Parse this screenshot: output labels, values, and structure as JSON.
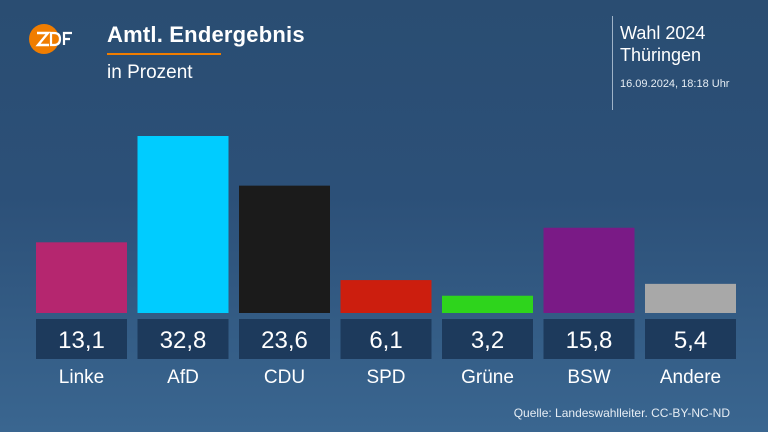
{
  "header": {
    "title": "Amtl. Endergebnis",
    "subtitle": "in Prozent",
    "election_line1": "Wahl 2024",
    "election_line2": "Thüringen",
    "timestamp": "16.09.2024, 18:18 Uhr",
    "logo_text": "ZDF",
    "accent_color": "#f07d00"
  },
  "chart_data": {
    "type": "bar",
    "title": "Amtl. Endergebnis",
    "subtitle": "in Prozent",
    "categories": [
      "Linke",
      "AfD",
      "CDU",
      "SPD",
      "Grüne",
      "BSW",
      "Andere"
    ],
    "values": [
      13.1,
      32.8,
      23.6,
      6.1,
      3.2,
      15.8,
      5.4
    ],
    "value_labels": [
      "13,1",
      "32,8",
      "23,6",
      "6,1",
      "3,2",
      "15,8",
      "5,4"
    ],
    "colors": [
      "#b5266f",
      "#00ccff",
      "#1b1b1b",
      "#cc1e0e",
      "#2ed41c",
      "#7a1a86",
      "#a8a8a8"
    ],
    "ylim": [
      0,
      32.8
    ],
    "grid": false,
    "legend": "none"
  },
  "footer": {
    "source": "Quelle: Landeswahlleiter. CC-BY-NC-ND"
  }
}
